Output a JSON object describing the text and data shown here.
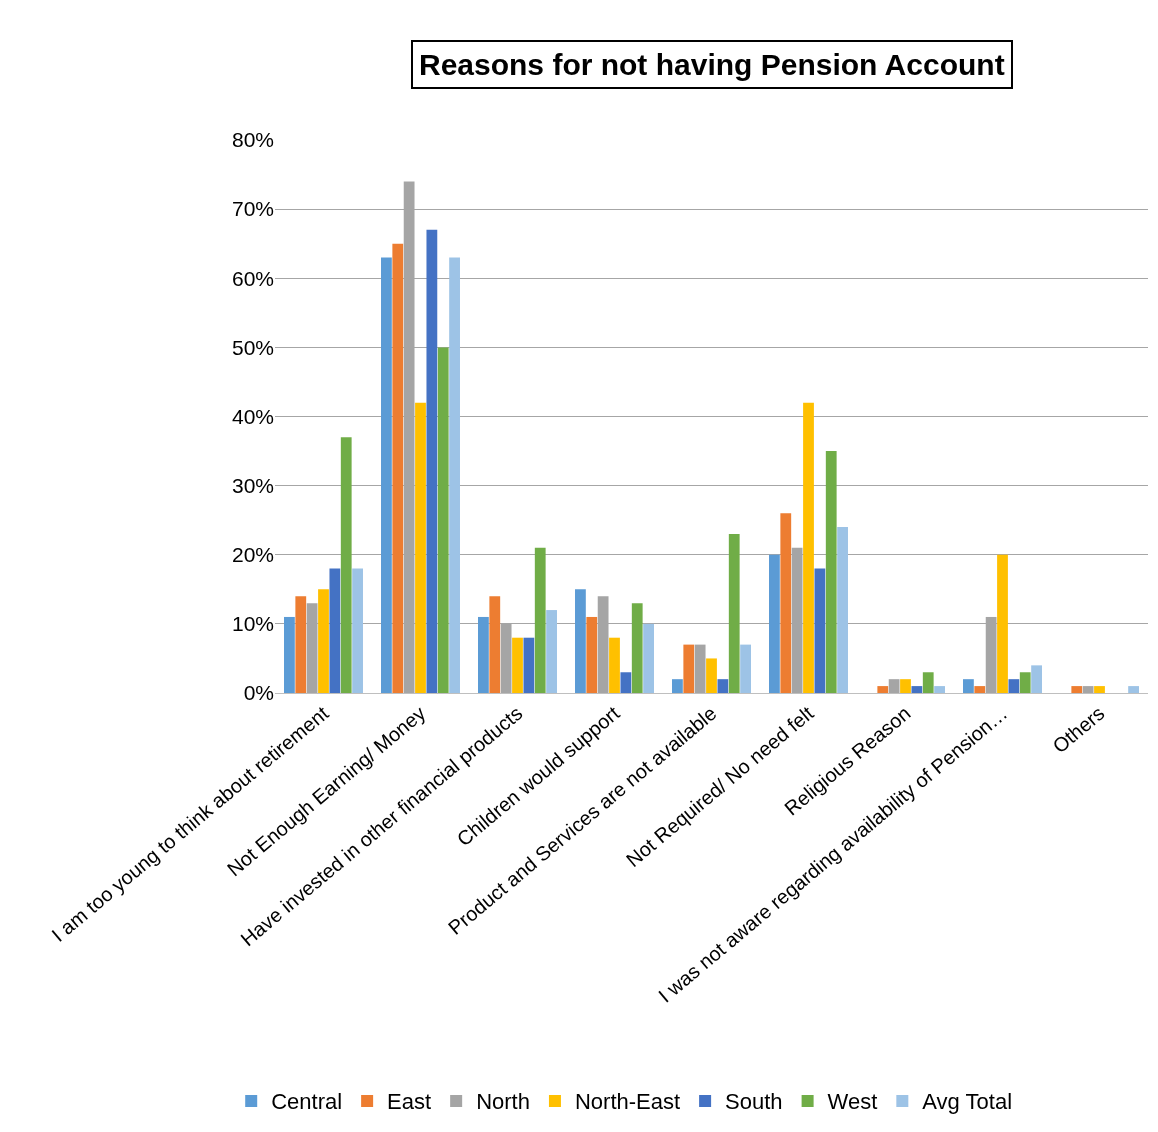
{
  "chart_data": {
    "type": "bar",
    "title": "Reasons for not having Pension Account",
    "categories": [
      "I am too young to think about retirement",
      "Not Enough Earning/ Money",
      "Have invested in other financial products",
      "Children would support",
      "Product and Services are not available",
      "Not Required/ No need felt",
      "Religious Reason",
      "I was not aware regarding availability of Pension…",
      "Others"
    ],
    "series": [
      {
        "name": "Central",
        "color": "#5b9bd5",
        "values": [
          11,
          63,
          11,
          15,
          2,
          20,
          0,
          2,
          0
        ]
      },
      {
        "name": "East",
        "color": "#ed7d31",
        "values": [
          14,
          65,
          14,
          11,
          7,
          26,
          1,
          1,
          1
        ]
      },
      {
        "name": "North",
        "color": "#a5a5a5",
        "values": [
          13,
          74,
          10,
          14,
          7,
          21,
          2,
          11,
          1
        ]
      },
      {
        "name": "North-East",
        "color": "#ffc000",
        "values": [
          15,
          42,
          8,
          8,
          5,
          42,
          2,
          20,
          1
        ]
      },
      {
        "name": "South",
        "color": "#4472c4",
        "values": [
          18,
          67,
          8,
          3,
          2,
          18,
          1,
          2,
          0
        ]
      },
      {
        "name": "West",
        "color": "#70ad47",
        "values": [
          37,
          50,
          21,
          13,
          23,
          35,
          3,
          3,
          0
        ]
      },
      {
        "name": "Avg Total",
        "color": "#9dc3e6",
        "values": [
          18,
          63,
          12,
          10,
          7,
          24,
          1,
          4,
          1
        ]
      }
    ],
    "ylim": [
      0,
      80
    ],
    "yticks": [
      {
        "value": 0,
        "label": "0%"
      },
      {
        "value": 10,
        "label": "10%"
      },
      {
        "value": 20,
        "label": "20%"
      },
      {
        "value": 30,
        "label": "30%"
      },
      {
        "value": 40,
        "label": "40%"
      },
      {
        "value": 50,
        "label": "50%"
      },
      {
        "value": 60,
        "label": "60%"
      },
      {
        "value": 70,
        "label": "70%"
      },
      {
        "value": 80,
        "label": "80%"
      }
    ],
    "grid": "y",
    "legend": "bottom"
  }
}
